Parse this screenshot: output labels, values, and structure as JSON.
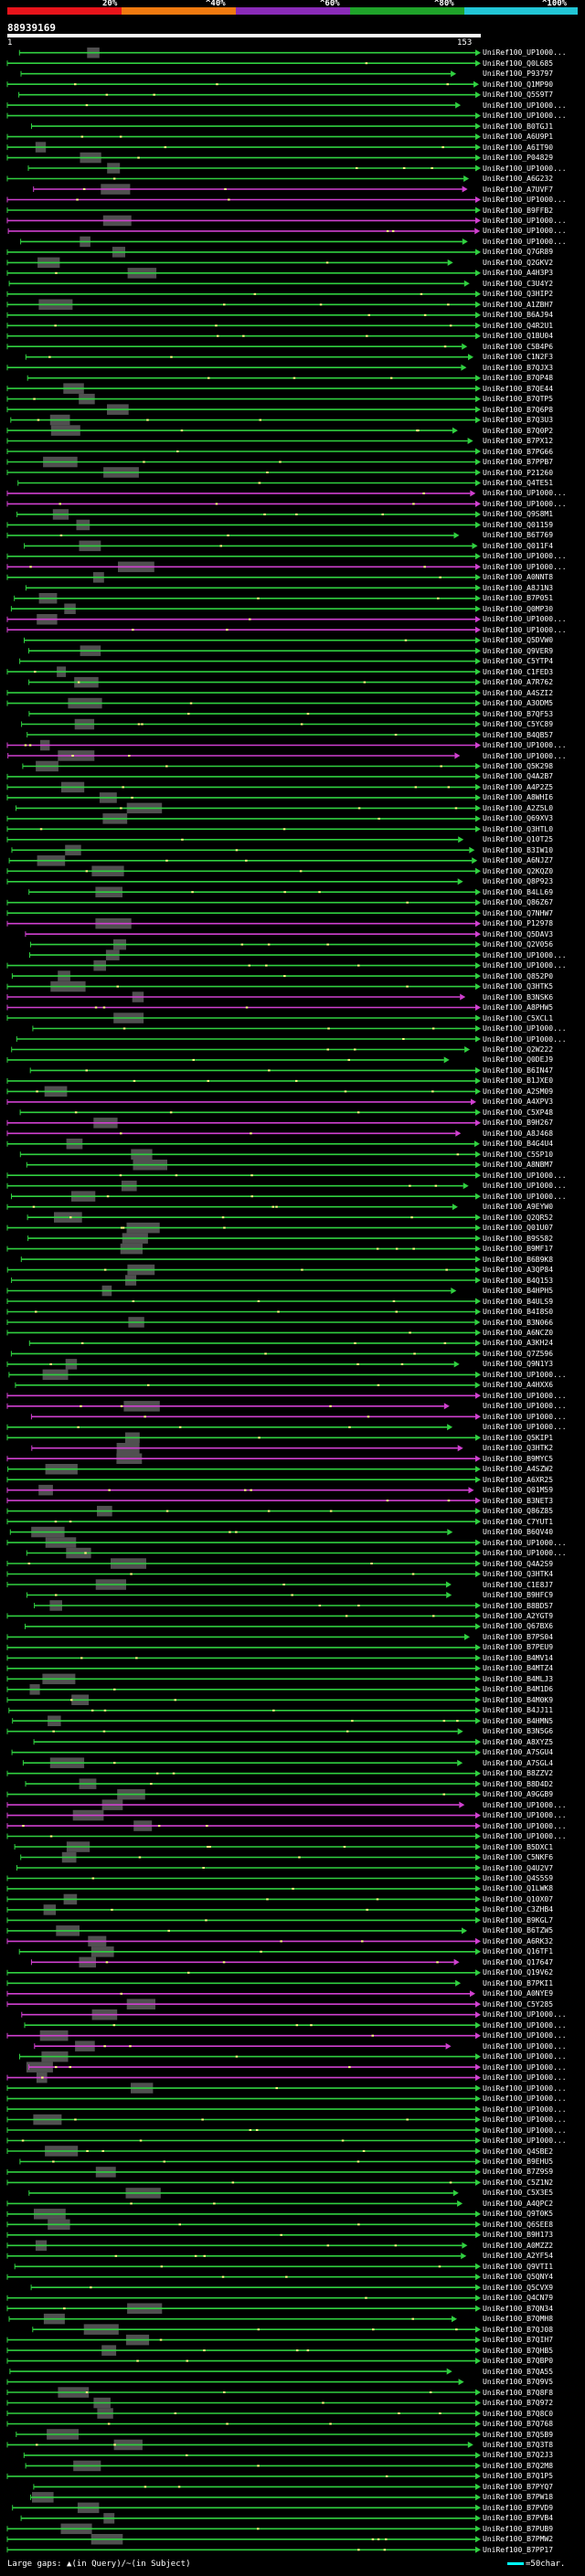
{
  "scale": {
    "labels": [
      "20%",
      "^40%",
      "^60%",
      "^80%",
      "^100%"
    ],
    "colors": [
      "#e8141b",
      "#f07a10",
      "#8a2bb8",
      "#1fa32a",
      "#22c6d6"
    ]
  },
  "query": {
    "id": "88939169",
    "start": "1",
    "end": "153"
  },
  "colors": {
    "hit_line": "#30d040",
    "hit_highlight": "#d040d0",
    "gap_box": "#505050",
    "mismatch": "#ffff80"
  },
  "hits": [
    "UniRef100_UP1000...",
    "UniRef100_Q0L685",
    "UniRef100_P93797",
    "UniRef100_Q1MP90",
    "UniRef100_Q5S9T7",
    "UniRef100_UP1000...",
    "UniRef100_UP1000...",
    "UniRef100_B0TGJ1",
    "UniRef100_A6U9P1",
    "UniRef100_A6IT90",
    "UniRef100_P04829",
    "UniRef100_UP1000...",
    "UniRef100_A6G232",
    "UniRef100_A7UVF7",
    "UniRef100_UP1000...",
    "UniRef100_B9FFB2",
    "UniRef100_UP1000...",
    "UniRef100_UP1000...",
    "UniRef100_UP1000...",
    "UniRef100_Q7GR89",
    "UniRef100_Q2GKV2",
    "UniRef100_A4H3P3",
    "UniRef100_C3U4Y2",
    "UniRef100_Q3HIP2",
    "UniRef100_A1ZBH7",
    "UniRef100_B6AJ94",
    "UniRef100_Q4R2U1",
    "UniRef100_Q1BU04",
    "UniRef100_C5B4P6",
    "UniRef100_C1N2F3",
    "UniRef100_B7QJX3",
    "UniRef100_B7QP48",
    "UniRef100_B7QE44",
    "UniRef100_B7QTP5",
    "UniRef100_B7Q6P8",
    "UniRef100_B7Q3U3",
    "UniRef100_B7Q0P2",
    "UniRef100_B7PX12",
    "UniRef100_B7PG66",
    "UniRef100_B7PPB7",
    "UniRef100_P21260",
    "UniRef100_Q4TE51",
    "UniRef100_UP1000...",
    "UniRef100_UP1000...",
    "UniRef100_Q9S8M1",
    "UniRef100_Q01159",
    "UniRef100_B6T769",
    "UniRef100_Q011F4",
    "UniRef100_UP1000...",
    "UniRef100_UP1000...",
    "UniRef100_A0NNT8",
    "UniRef100_A8J1N3",
    "UniRef100_B7P051",
    "UniRef100_Q0MP30",
    "UniRef100_UP1000...",
    "UniRef100_UP1000...",
    "UniRef100_Q5DVW0",
    "UniRef100_Q9VER9",
    "UniRef100_C5YTP4",
    "UniRef100_C1FED3",
    "UniRef100_A7R762",
    "UniRef100_A4SZI2",
    "UniRef100_A3ODM5",
    "UniRef100_B7QF53",
    "UniRef100_C5YC89",
    "UniRef100_B4QB57",
    "UniRef100_UP1000...",
    "UniRef100_UP1000...",
    "UniRef100_Q5K298",
    "UniRef100_Q4A2B7",
    "UniRef100_A4P2Z5",
    "UniRef100_A8WHI6",
    "UniRef100_A2Z5L0",
    "UniRef100_Q69XV3",
    "UniRef100_Q3HTL0",
    "UniRef100_Q10T25",
    "UniRef100_B3IW10",
    "UniRef100_A6NJZ7",
    "UniRef100_Q2KQZ0",
    "UniRef100_Q8P923",
    "UniRef100_B4LL69",
    "UniRef100_Q86Z67",
    "UniRef100_Q7NHW7",
    "UniRef100_P12978",
    "UniRef100_Q5DAV3",
    "UniRef100_Q2V056",
    "UniRef100_UP1000...",
    "UniRef100_UP1000...",
    "UniRef100_Q852P0",
    "UniRef100_Q3HTK5",
    "UniRef100_B3NSK6",
    "UniRef100_A8PHW5",
    "UniRef100_C5XCL1",
    "UniRef100_UP1000...",
    "UniRef100_UP1000...",
    "UniRef100_Q2W222",
    "UniRef100_Q0DEJ9",
    "UniRef100_B6IN47",
    "UniRef100_B1JXE0",
    "UniRef100_A2SM09",
    "UniRef100_A4XPV3",
    "UniRef100_C5XP48",
    "UniRef100_B9H267",
    "UniRef100_A8J468",
    "UniRef100_B4G4U4",
    "UniRef100_C5SP10",
    "UniRef100_A8NBM7",
    "UniRef100_UP1000...",
    "UniRef100_UP1000...",
    "UniRef100_UP1000...",
    "UniRef100_A9EYW0",
    "UniRef100_Q2QR52",
    "UniRef100_Q01U07",
    "UniRef100_B9S582",
    "UniRef100_B9MF17",
    "UniRef100_B6B9K8",
    "UniRef100_A3QP84",
    "UniRef100_B4Q153",
    "UniRef100_B4HPH5",
    "UniRef100_B4ULS9",
    "UniRef100_B4I8S0",
    "UniRef100_B3N066",
    "UniRef100_A6NCZ0",
    "UniRef100_A3KH24",
    "UniRef100_Q7Z596",
    "UniRef100_Q9N1Y3",
    "UniRef100_UP1000...",
    "UniRef100_A4HXX6",
    "UniRef100_UP1000...",
    "UniRef100_UP1000...",
    "UniRef100_UP1000...",
    "UniRef100_UP1000...",
    "UniRef100_Q5KIP1",
    "UniRef100_Q3HTK2",
    "UniRef100_B9MYC5",
    "UniRef100_A4SZW2",
    "UniRef100_A6XR25",
    "UniRef100_Q01M59",
    "UniRef100_B3NET3",
    "UniRef100_Q86Z85",
    "UniRef100_C7YUT1",
    "UniRef100_B6QV40",
    "UniRef100_UP1000...",
    "UniRef100_UP1000...",
    "UniRef100_Q4A2S9",
    "UniRef100_Q3HTK4",
    "UniRef100_C1E8J7",
    "UniRef100_B9HFC9",
    "UniRef100_B8BD57",
    "UniRef100_A2YGT9",
    "UniRef100_Q67BX6",
    "UniRef100_B7PS04",
    "UniRef100_B7PEU9",
    "UniRef100_B4MV14",
    "UniRef100_B4MTZ4",
    "UniRef100_B4MLJ3",
    "UniRef100_B4M1D6",
    "UniRef100_B4M0K9",
    "UniRef100_B4JJ11",
    "UniRef100_B4HMN5",
    "UniRef100_B3N5G6",
    "UniRef100_A8XYZ5",
    "UniRef100_A7SGU4",
    "UniRef100_A7SGL4",
    "UniRef100_B8ZZV2",
    "UniRef100_B8D4D2",
    "UniRef100_A9GGB9",
    "UniRef100_UP1000...",
    "UniRef100_UP1000...",
    "UniRef100_UP1000...",
    "UniRef100_UP1000...",
    "UniRef100_B5DXC1",
    "UniRef100_C5NKF6",
    "UniRef100_Q4U2V7",
    "UniRef100_Q4S5S9",
    "UniRef100_Q1LWK8",
    "UniRef100_Q10X07",
    "UniRef100_C3ZHB4",
    "UniRef100_B9KGL7",
    "UniRef100_B6TZW5",
    "UniRef100_A6RK32",
    "UniRef100_Q16TF1",
    "UniRef100_Q17647",
    "UniRef100_Q19V62",
    "UniRef100_B7PKI1",
    "UniRef100_A0NYE9",
    "UniRef100_C5Y285",
    "UniRef100_UP1000...",
    "UniRef100_UP1000...",
    "UniRef100_UP1000...",
    "UniRef100_UP1000...",
    "UniRef100_UP1000...",
    "UniRef100_UP1000...",
    "UniRef100_UP1000...",
    "UniRef100_UP1000...",
    "UniRef100_UP1000...",
    "UniRef100_UP1000...",
    "UniRef100_UP1000...",
    "UniRef100_UP1000...",
    "UniRef100_UP1000...",
    "UniRef100_Q4SBE2",
    "UniRef100_B9EHU5",
    "UniRef100_B7Z9S9",
    "UniRef100_C5Z1N2",
    "UniRef100_C5X3E5",
    "UniRef100_A4QPC2",
    "UniRef100_Q9T0K5",
    "UniRef100_Q6SEE8",
    "UniRef100_B9H173",
    "UniRef100_A0MZZ2",
    "UniRef100_A2YF54",
    "UniRef100_Q9VTI1",
    "UniRef100_Q5QNY4",
    "UniRef100_Q5CVX9",
    "UniRef100_Q4CN79",
    "UniRef100_B7QN34",
    "UniRef100_B7QMH8",
    "UniRef100_B7QJ08",
    "UniRef100_B7QIH7",
    "UniRef100_B7QHB5",
    "UniRef100_B7QBP0",
    "UniRef100_B7QA55",
    "UniRef100_B7Q9V5",
    "UniRef100_B7Q8F8",
    "UniRef100_B7Q972",
    "UniRef100_B7Q8C0",
    "UniRef100_B7Q768",
    "UniRef100_B7Q5B9",
    "UniRef100_B7Q3T8",
    "UniRef100_B7Q2J3",
    "UniRef100_B7Q2M8",
    "UniRef100_B7Q1P5",
    "UniRef100_B7PYQ7",
    "UniRef100_B7PW18",
    "UniRef100_B7PVD9",
    "UniRef100_B7PVB4",
    "UniRef100_B7PUB9",
    "UniRef100_B7PMW2",
    "UniRef100_B7PP17"
  ],
  "footer": {
    "legend": "Large gaps: ▲(in Query)/~(in Subject)",
    "scale": "=50char."
  }
}
